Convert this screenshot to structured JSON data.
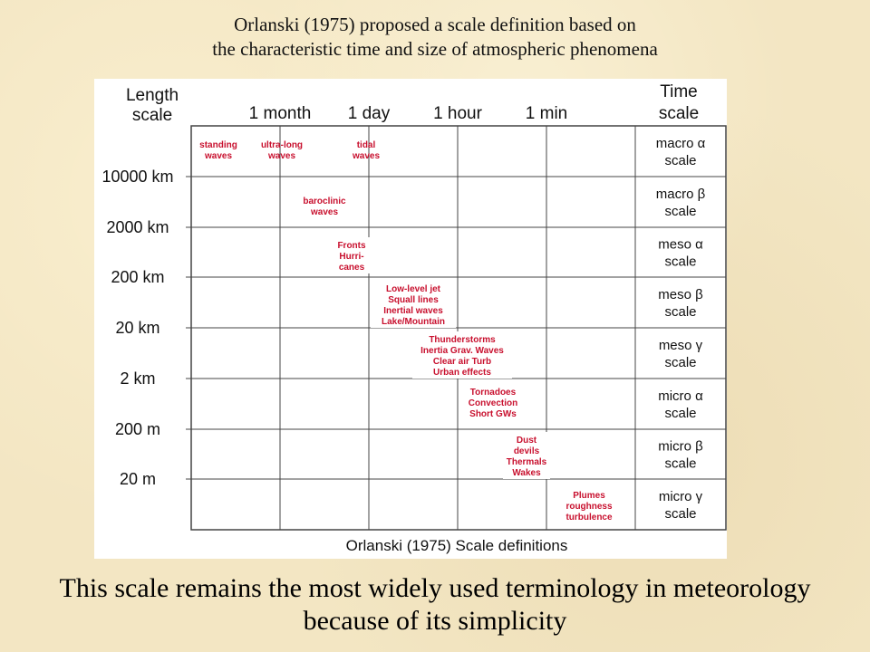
{
  "header": {
    "line1": "Orlanski (1975) proposed a scale definition based on",
    "line2": "the characteristic time and size of atmospheric phenomena"
  },
  "figure": {
    "length_header": [
      "Length",
      "scale"
    ],
    "time_header": [
      "Time",
      "scale"
    ],
    "time_columns": [
      "1 month",
      "1 day",
      "1 hour",
      "1 min"
    ],
    "length_labels": [
      "10000 km",
      "2000 km",
      "200 km",
      "20 km",
      "2 km",
      "200 m",
      "20 m"
    ],
    "scale_names": [
      {
        "lines": [
          "macro α",
          "scale"
        ]
      },
      {
        "lines": [
          "macro β",
          "scale"
        ]
      },
      {
        "lines": [
          "meso α",
          "scale"
        ]
      },
      {
        "lines": [
          "meso β",
          "scale"
        ]
      },
      {
        "lines": [
          "meso γ",
          "scale"
        ]
      },
      {
        "lines": [
          "micro α",
          "scale"
        ]
      },
      {
        "lines": [
          "micro β",
          "scale"
        ]
      },
      {
        "lines": [
          "micro γ",
          "scale"
        ]
      }
    ],
    "phenomena": [
      {
        "name": "phenomenon-standing-waves",
        "lines": [
          "standing",
          "waves"
        ]
      },
      {
        "name": "phenomenon-ultra-long-waves",
        "lines": [
          "ultra-long",
          "waves"
        ]
      },
      {
        "name": "phenomenon-tidal-waves",
        "lines": [
          "tidal",
          "waves"
        ]
      },
      {
        "name": "phenomenon-baroclinic-waves",
        "lines": [
          "baroclinic",
          "waves"
        ]
      },
      {
        "name": "phenomenon-fronts-hurricanes",
        "lines": [
          "Fronts",
          "Hurri-",
          "canes"
        ]
      },
      {
        "name": "phenomenon-low-level-jet",
        "lines": [
          "Low-level jet",
          "Squall lines",
          "Inertial waves",
          "Lake/Mountain"
        ]
      },
      {
        "name": "phenomenon-thunderstorms",
        "lines": [
          "Thunderstorms",
          "Inertia Grav. Waves",
          "Clear air Turb",
          "Urban effects"
        ]
      },
      {
        "name": "phenomenon-tornadoes",
        "lines": [
          "Tornadoes",
          "Convection",
          "Short GWs"
        ]
      },
      {
        "name": "phenomenon-dust-devils",
        "lines": [
          "Dust",
          "devils",
          "Thermals",
          "Wakes"
        ]
      },
      {
        "name": "phenomenon-plumes",
        "lines": [
          "Plumes",
          "roughness",
          "turbulence"
        ]
      }
    ],
    "caption": "Orlanski (1975) Scale definitions",
    "phenomena_color": "#c8102e"
  },
  "footer": {
    "line1": "This scale remains the most widely used terminology in meteorology",
    "line2": "because of its simplicity"
  }
}
